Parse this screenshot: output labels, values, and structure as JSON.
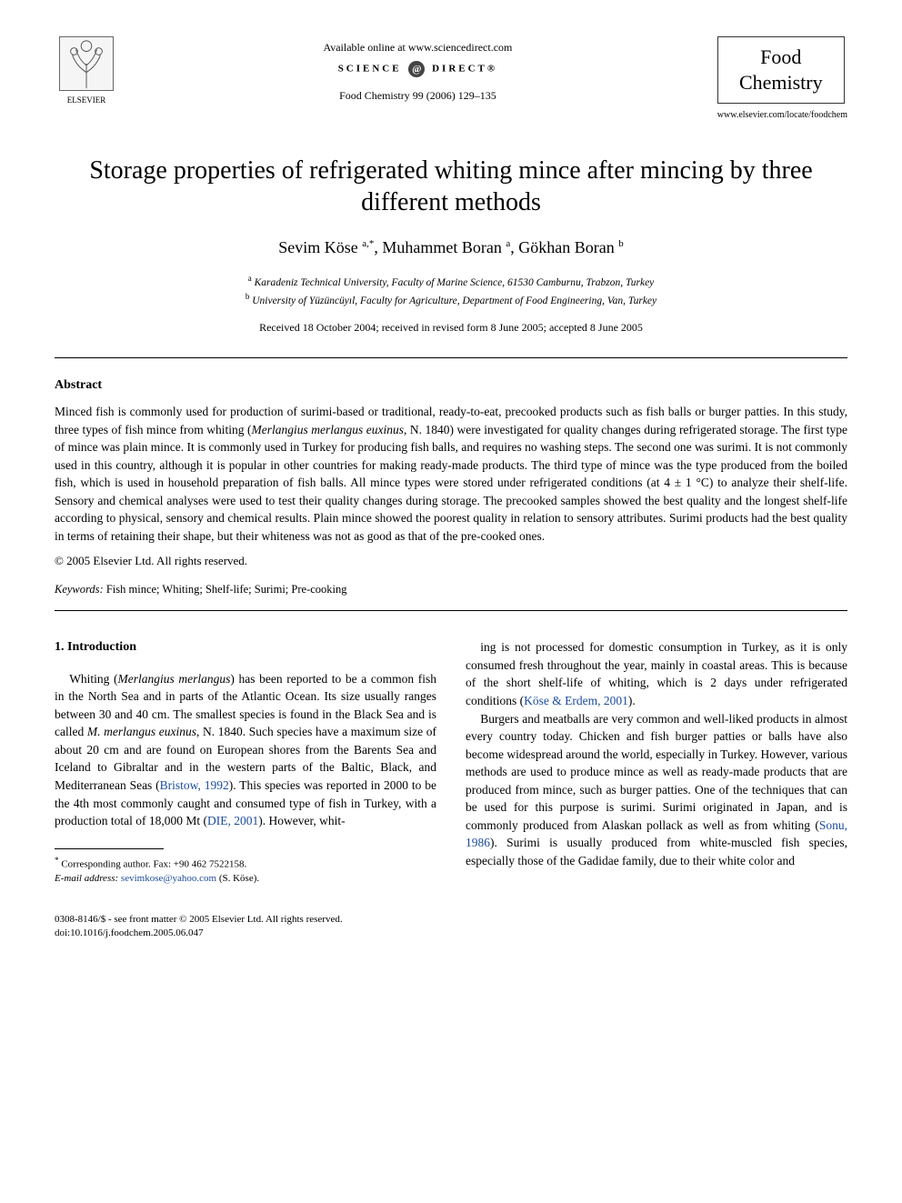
{
  "header": {
    "elsevier_label": "ELSEVIER",
    "available_line": "Available online at www.sciencedirect.com",
    "scidirect_left": "SCIENCE",
    "scidirect_right": "DIRECT®",
    "journal_ref": "Food Chemistry 99 (2006) 129–135",
    "journal_name_1": "Food",
    "journal_name_2": "Chemistry",
    "locate": "www.elsevier.com/locate/foodchem"
  },
  "title": "Storage properties of refrigerated whiting mince after mincing by three different methods",
  "authors_html": "Sevim Köse <sup>a,*</sup>, Muhammet Boran <sup>a</sup>, Gökhan Boran <sup>b</sup>",
  "affiliations": {
    "a": "Karadeniz Technical University, Faculty of Marine Science, 61530 Camburnu, Trabzon, Turkey",
    "b": "University of Yüzüncüyıl, Faculty for Agriculture, Department of Food Engineering, Van, Turkey"
  },
  "dates": "Received 18 October 2004; received in revised form 8 June 2005; accepted 8 June 2005",
  "abstract": {
    "heading": "Abstract",
    "body": "Minced fish is commonly used for production of surimi-based or traditional, ready-to-eat, precooked products such as fish balls or burger patties. In this study, three types of fish mince from whiting (Merlangius merlangus euxinus, N. 1840) were investigated for quality changes during refrigerated storage. The first type of mince was plain mince. It is commonly used in Turkey for producing fish balls, and requires no washing steps. The second one was surimi. It is not commonly used in this country, although it is popular in other countries for making ready-made products. The third type of mince was the type produced from the boiled fish, which is used in household preparation of fish balls. All mince types were stored under refrigerated conditions (at 4 ± 1 °C) to analyze their shelf-life. Sensory and chemical analyses were used to test their quality changes during storage. The precooked samples showed the best quality and the longest shelf-life according to physical, sensory and chemical results. Plain mince showed the poorest quality in relation to sensory attributes. Surimi products had the best quality in terms of retaining their shape, but their whiteness was not as good as that of the pre-cooked ones.",
    "copyright": "© 2005 Elsevier Ltd. All rights reserved."
  },
  "keywords": {
    "label": "Keywords:",
    "list": "Fish mince; Whiting; Shelf-life; Surimi; Pre-cooking"
  },
  "section1": {
    "heading": "1. Introduction",
    "left_p1a": "Whiting (",
    "left_p1_ital": "Merlangius merlangus",
    "left_p1b": ") has been reported to be a common fish in the North Sea and in parts of the Atlantic Ocean. Its size usually ranges between 30 and 40 cm. The smallest species is found in the Black Sea and is called ",
    "left_p1_ital2": "M. merlangus euxinus",
    "left_p1c": ", N. 1840. Such species have a maximum size of about 20 cm and are found on European shores from the Barents Sea and Iceland to Gibraltar and in the western parts of the Baltic, Black, and Mediterranean Seas (",
    "left_ref1": "Bristow, 1992",
    "left_p1d": "). This species was reported in 2000 to be the 4th most commonly caught and consumed type of fish in Turkey, with a production total of 18,000 Mt (",
    "left_ref2": "DIE, 2001",
    "left_p1e": "). However, whit-",
    "right_p1a": "ing is not processed for domestic consumption in Turkey, as it is only consumed fresh throughout the year, mainly in coastal areas. This is because of the short shelf-life of whiting, which is 2 days under refrigerated conditions (",
    "right_ref1": "Köse & Erdem, 2001",
    "right_p1b": ").",
    "right_p2a": "Burgers and meatballs are very common and well-liked products in almost every country today. Chicken and fish burger patties or balls have also become widespread around the world, especially in Turkey. However, various methods are used to produce mince as well as ready-made products that are produced from mince, such as burger patties. One of the techniques that can be used for this purpose is surimi. Surimi originated in Japan, and is commonly produced from Alaskan pollack as well as from whiting (",
    "right_ref2": "Sonu, 1986",
    "right_p2b": "). Surimi is usually produced from white-muscled fish species, especially those of the Gadidae family, due to their white color and"
  },
  "footnote": {
    "corr": "Corresponding author. Fax: +90 462 7522158.",
    "email_label": "E-mail address:",
    "email": "sevimkose@yahoo.com",
    "email_who": "(S. Köse)."
  },
  "bottom": {
    "issn": "0308-8146/$ - see front matter © 2005 Elsevier Ltd. All rights reserved.",
    "doi": "doi:10.1016/j.foodchem.2005.06.047"
  }
}
